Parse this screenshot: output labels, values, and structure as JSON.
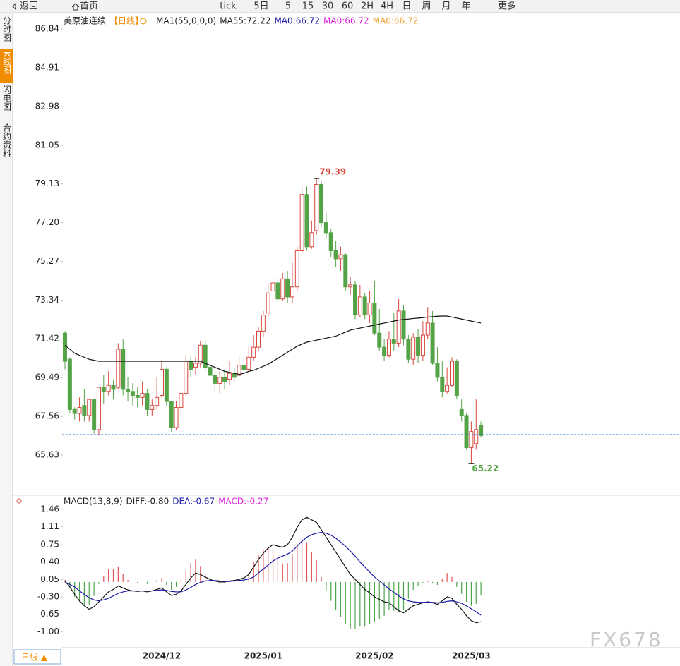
{
  "toolbar": [
    "返回",
    "首页",
    "tick",
    "5日",
    "5",
    "15",
    "30",
    "60",
    "2H",
    "4H",
    "日",
    "周",
    "月",
    "年",
    "更多"
  ],
  "sidebar": [
    "分时图",
    "K线图",
    "闪电图",
    "合约资料"
  ],
  "period_button": "日线 ▲",
  "watermark": "FX678",
  "chart_data": [
    {
      "type": "candlestick",
      "legend": [
        {
          "text": "美原油连续",
          "color": "#222222"
        },
        {
          "text": "【日线】",
          "color": "#f08c00"
        },
        {
          "text": "MA1(55,0,0,0)",
          "color": "#222222"
        },
        {
          "text": "MA55:72.22",
          "color": "#222222"
        },
        {
          "text": "MA0:66.72",
          "color": "#1a1aa6"
        },
        {
          "text": "MA0:66.72",
          "color": "#e020e0"
        },
        {
          "text": "MA0:66.72",
          "color": "#f0a030"
        }
      ],
      "categories": [
        null,
        null,
        null,
        null,
        null,
        null,
        null,
        null,
        null,
        null,
        null,
        null,
        null,
        null,
        null,
        null,
        null,
        null,
        null,
        null,
        "2024/12",
        null,
        null,
        null,
        null,
        null,
        null,
        null,
        null,
        null,
        null,
        null,
        null,
        null,
        null,
        null,
        null,
        null,
        null,
        null,
        null,
        "2025/01",
        null,
        null,
        null,
        null,
        null,
        null,
        null,
        null,
        null,
        null,
        null,
        null,
        null,
        null,
        null,
        null,
        null,
        null,
        null,
        null,
        null,
        null,
        "2025/02",
        null,
        null,
        null,
        null,
        null,
        null,
        null,
        null,
        null,
        null,
        null,
        null,
        null,
        null,
        null,
        null,
        null,
        null,
        null,
        "2025/03",
        null,
        null
      ],
      "open": [
        71.7,
        70.4,
        67.9,
        67.7,
        68.1,
        67.6,
        68.4,
        66.9,
        69.0,
        68.8,
        69.1,
        69.0,
        70.9,
        68.9,
        68.8,
        68.6,
        68.5,
        68.7,
        67.9,
        68.1,
        68.6,
        69.9,
        68.3,
        67.0,
        68.0,
        68.7,
        70.3,
        70.0,
        70.2,
        71.1,
        70.0,
        69.6,
        69.2,
        69.5,
        69.4,
        69.7,
        69.6,
        70.1,
        69.9,
        70.5,
        71.0,
        71.8,
        72.7,
        73.8,
        74.2,
        73.4,
        74.4,
        73.5,
        74.0,
        75.8,
        78.6,
        76.0,
        76.8,
        79.1,
        77.2,
        76.7,
        75.8,
        75.4,
        75.6,
        74.0,
        74.1,
        72.6,
        73.5,
        72.6,
        73.2,
        71.7,
        71.0,
        70.6,
        71.4,
        71.2,
        72.8,
        71.4,
        70.4,
        71.5,
        70.6,
        71.6,
        72.2,
        70.2,
        69.5,
        68.8,
        69.1,
        70.3,
        67.9,
        67.6,
        66.0,
        66.2,
        67.1
      ],
      "high": [
        71.8,
        70.5,
        68.0,
        68.5,
        68.9,
        68.4,
        68.4,
        69.0,
        69.6,
        69.8,
        69.4,
        71.2,
        71.4,
        69.5,
        69.2,
        69.0,
        69.3,
        68.9,
        68.4,
        69.5,
        70.3,
        70.0,
        68.3,
        68.3,
        68.8,
        70.6,
        70.5,
        70.5,
        71.3,
        71.4,
        70.2,
        70.2,
        69.8,
        69.9,
        70.3,
        70.0,
        70.6,
        70.2,
        71.0,
        71.6,
        72.0,
        72.8,
        74.2,
        74.5,
        74.5,
        74.7,
        74.8,
        75.2,
        76.0,
        79.0,
        79.0,
        77.3,
        79.39,
        79.3,
        77.7,
        76.9,
        76.3,
        76.0,
        75.7,
        74.5,
        74.3,
        74.1,
        73.7,
        73.8,
        74.3,
        72.9,
        71.4,
        71.8,
        72.7,
        73.4,
        73.1,
        71.6,
        71.7,
        71.9,
        72.3,
        73.0,
        72.8,
        71.0,
        70.3,
        70.0,
        70.5,
        70.4,
        68.4,
        67.7,
        67.3,
        68.4,
        67.3
      ],
      "low": [
        69.9,
        67.7,
        67.4,
        67.3,
        67.3,
        67.3,
        66.7,
        66.6,
        68.2,
        68.6,
        68.4,
        68.9,
        68.6,
        68.3,
        68.1,
        68.0,
        68.1,
        67.6,
        67.6,
        67.9,
        68.5,
        68.1,
        66.8,
        66.9,
        67.6,
        68.6,
        69.5,
        69.6,
        70.0,
        69.8,
        69.3,
        68.8,
        68.7,
        68.9,
        69.1,
        69.3,
        69.5,
        69.7,
        69.7,
        70.3,
        70.8,
        71.5,
        72.5,
        73.2,
        73.2,
        73.3,
        73.2,
        73.2,
        73.8,
        75.6,
        75.8,
        75.9,
        76.6,
        77.0,
        76.4,
        75.5,
        75.0,
        74.8,
        73.8,
        73.6,
        72.4,
        72.5,
        72.4,
        72.2,
        71.6,
        70.8,
        70.3,
        70.5,
        70.8,
        71.0,
        71.1,
        70.2,
        70.1,
        70.2,
        70.3,
        71.4,
        70.1,
        69.3,
        68.5,
        68.7,
        69.0,
        68.4,
        67.3,
        65.9,
        65.22,
        65.9,
        66.5
      ],
      "close": [
        70.3,
        67.9,
        67.7,
        68.0,
        67.6,
        68.4,
        66.9,
        69.0,
        68.8,
        69.1,
        68.9,
        70.9,
        68.9,
        68.8,
        68.6,
        68.5,
        68.7,
        67.9,
        68.1,
        68.5,
        69.9,
        68.3,
        67.0,
        68.0,
        68.7,
        70.3,
        69.9,
        70.2,
        71.1,
        70.0,
        69.6,
        69.2,
        69.5,
        69.3,
        69.7,
        69.5,
        70.1,
        69.9,
        70.5,
        71.0,
        71.8,
        72.6,
        73.7,
        74.2,
        73.4,
        74.4,
        73.5,
        74.0,
        75.8,
        78.6,
        76.0,
        76.7,
        79.1,
        77.2,
        76.7,
        75.8,
        75.4,
        75.6,
        74.0,
        74.1,
        72.6,
        73.5,
        72.6,
        73.2,
        71.7,
        71.0,
        70.6,
        71.4,
        71.2,
        72.8,
        71.4,
        70.4,
        71.5,
        70.6,
        71.6,
        72.2,
        70.2,
        69.5,
        68.8,
        69.1,
        70.3,
        68.6,
        67.6,
        66.0,
        66.8,
        66.9,
        66.6
      ],
      "up_color": "#d9463d",
      "down_color": "#55a347",
      "series": [
        {
          "color": "#111111",
          "values": [
            71.1,
            70.9,
            70.7,
            70.6,
            70.5,
            70.4,
            70.35,
            70.3,
            70.3,
            70.3,
            70.3,
            70.3,
            70.3,
            70.3,
            70.3,
            70.3,
            70.3,
            70.3,
            70.3,
            70.3,
            70.3,
            70.3,
            70.3,
            70.3,
            70.3,
            70.3,
            70.3,
            70.3,
            70.3,
            70.2,
            70.1,
            70.0,
            69.9,
            69.8,
            69.75,
            69.7,
            69.65,
            69.7,
            69.8,
            69.85,
            69.95,
            70.05,
            70.15,
            70.3,
            70.45,
            70.6,
            70.75,
            70.9,
            71.05,
            71.15,
            71.25,
            71.3,
            71.35,
            71.4,
            71.45,
            71.5,
            71.55,
            71.65,
            71.75,
            71.85,
            71.9,
            71.95,
            72.0,
            72.05,
            72.1,
            72.15,
            72.2,
            72.25,
            72.3,
            72.35,
            72.38,
            72.4,
            72.43,
            72.45,
            72.47,
            72.5,
            72.52,
            72.54,
            72.55,
            72.55,
            72.5,
            72.45,
            72.4,
            72.35,
            72.3,
            72.25,
            72.2
          ]
        }
      ],
      "last_price": 66.65,
      "last_price_color": "#2a7fd4",
      "high_label": 79.39,
      "high_label_color": "#d9463d",
      "low_label": 65.22,
      "low_label_color": "#55a347",
      "ylim": [
        63.7,
        87.58
      ],
      "yticks": [
        86.84,
        84.91,
        82.98,
        81.05,
        79.13,
        {
          "value": 77.2,
          "label": "77.20"
        },
        75.27,
        73.34,
        71.42,
        69.49,
        67.56,
        65.63
      ]
    },
    {
      "type": "macd",
      "legend": [
        {
          "text": "MACD(13,8,9)",
          "color": "#222222"
        },
        {
          "text": "DIFF:-0.80",
          "color": "#222222"
        },
        {
          "text": "DEA:-0.67",
          "color": "#1a1aa6"
        },
        {
          "text": "MACD:-0.27",
          "color": "#e020e0"
        }
      ],
      "series": [
        {
          "color": "#111111",
          "values": [
            0.02,
            -0.1,
            -0.25,
            -0.38,
            -0.48,
            -0.55,
            -0.5,
            -0.4,
            -0.3,
            -0.2,
            -0.15,
            -0.08,
            -0.12,
            -0.16,
            -0.18,
            -0.19,
            -0.18,
            -0.2,
            -0.18,
            -0.15,
            -0.12,
            -0.2,
            -0.27,
            -0.25,
            -0.18,
            -0.05,
            0.08,
            0.18,
            0.15,
            0.1,
            0.05,
            0.02,
            0.0,
            0.0,
            0.02,
            0.03,
            0.05,
            0.08,
            0.15,
            0.3,
            0.45,
            0.58,
            0.68,
            0.75,
            0.72,
            0.7,
            0.75,
            0.9,
            1.1,
            1.25,
            1.3,
            1.25,
            1.2,
            1.05,
            0.9,
            0.75,
            0.6,
            0.45,
            0.3,
            0.15,
            0.05,
            -0.05,
            -0.15,
            -0.22,
            -0.3,
            -0.35,
            -0.4,
            -0.42,
            -0.5,
            -0.58,
            -0.62,
            -0.55,
            -0.48,
            -0.45,
            -0.42,
            -0.4,
            -0.42,
            -0.45,
            -0.38,
            -0.3,
            -0.33,
            -0.45,
            -0.55,
            -0.68,
            -0.78,
            -0.82,
            -0.8
          ]
        },
        {
          "color": "#1a1aa6",
          "values": [
            0.0,
            -0.05,
            -0.1,
            -0.18,
            -0.25,
            -0.32,
            -0.36,
            -0.38,
            -0.36,
            -0.33,
            -0.28,
            -0.23,
            -0.2,
            -0.18,
            -0.18,
            -0.18,
            -0.18,
            -0.18,
            -0.18,
            -0.17,
            -0.16,
            -0.17,
            -0.19,
            -0.2,
            -0.2,
            -0.16,
            -0.11,
            -0.05,
            -0.01,
            0.02,
            0.03,
            0.03,
            0.02,
            0.01,
            0.01,
            0.02,
            0.03,
            0.04,
            0.06,
            0.1,
            0.18,
            0.26,
            0.34,
            0.42,
            0.48,
            0.52,
            0.56,
            0.62,
            0.72,
            0.82,
            0.9,
            0.95,
            0.98,
            1.0,
            0.98,
            0.94,
            0.88,
            0.8,
            0.72,
            0.62,
            0.52,
            0.4,
            0.3,
            0.2,
            0.1,
            0.02,
            -0.06,
            -0.14,
            -0.21,
            -0.28,
            -0.34,
            -0.38,
            -0.4,
            -0.41,
            -0.41,
            -0.41,
            -0.41,
            -0.42,
            -0.41,
            -0.39,
            -0.38,
            -0.4,
            -0.43,
            -0.48,
            -0.54,
            -0.6,
            -0.67
          ]
        }
      ],
      "bars": [
        0.04,
        -0.1,
        -0.3,
        -0.4,
        -0.46,
        -0.46,
        -0.28,
        -0.04,
        0.12,
        0.26,
        0.26,
        0.3,
        0.16,
        0.04,
        0.0,
        -0.02,
        0.0,
        -0.04,
        0.0,
        0.04,
        0.08,
        -0.06,
        -0.16,
        -0.1,
        0.04,
        0.22,
        0.38,
        0.46,
        0.32,
        0.16,
        0.04,
        -0.02,
        -0.04,
        -0.02,
        0.02,
        0.02,
        0.04,
        0.08,
        0.18,
        0.4,
        0.54,
        0.64,
        0.68,
        0.66,
        0.48,
        0.36,
        0.38,
        0.56,
        0.76,
        0.86,
        0.8,
        0.6,
        0.44,
        0.1,
        -0.16,
        -0.38,
        -0.56,
        -0.7,
        -0.84,
        -0.94,
        -0.94,
        -0.9,
        -0.9,
        -0.84,
        -0.8,
        -0.74,
        -0.68,
        -0.56,
        -0.58,
        -0.6,
        -0.56,
        -0.34,
        -0.16,
        -0.08,
        -0.02,
        0.02,
        -0.02,
        -0.06,
        0.06,
        0.18,
        0.1,
        -0.1,
        -0.24,
        -0.4,
        -0.48,
        -0.44,
        -0.27
      ],
      "up_color": "#e05050",
      "down_color": "#4ca64c",
      "ylim": [
        -1.28,
        1.56
      ],
      "yticks": [
        1.46,
        1.11,
        0.75,
        {
          "value": 0.4,
          "label": "0.40"
        },
        0.05,
        {
          "value": -0.3,
          "label": "-0.30"
        },
        -0.65,
        {
          "value": -1.0,
          "label": "-1.00"
        }
      ]
    }
  ]
}
